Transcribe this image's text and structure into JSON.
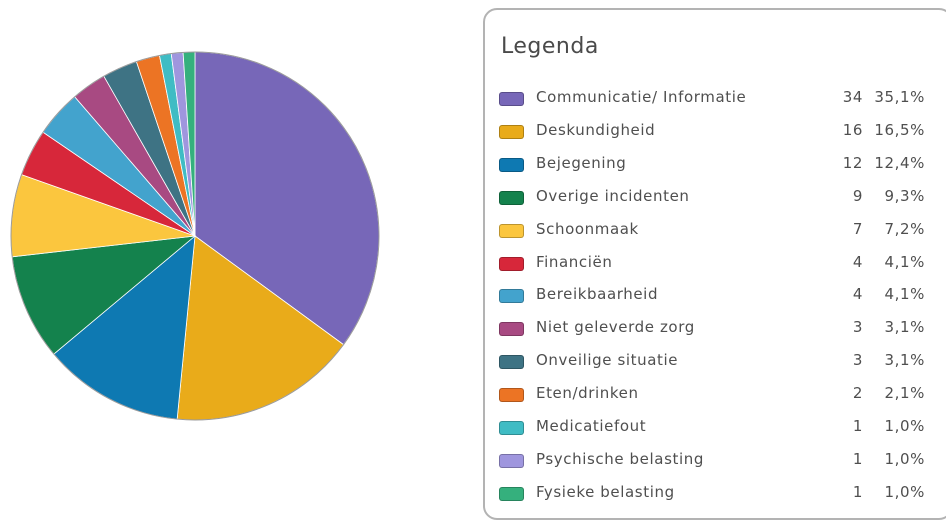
{
  "chart_data": {
    "type": "pie",
    "legend_title": "Legenda",
    "legend_position": "right",
    "slices": [
      {
        "label": "Communicatie/ Informatie",
        "count": "34",
        "percent": "35,1%",
        "value": 34,
        "color": "#7767b8"
      },
      {
        "label": "Deskundigheid",
        "count": "16",
        "percent": "16,5%",
        "value": 16,
        "color": "#e9ab1a"
      },
      {
        "label": "Bejegening",
        "count": "12",
        "percent": "12,4%",
        "value": 12,
        "color": "#0e79b2"
      },
      {
        "label": "Overige incidenten",
        "count": "9",
        "percent": "9,3%",
        "value": 9,
        "color": "#14824d"
      },
      {
        "label": "Schoonmaak",
        "count": "7",
        "percent": "7,2%",
        "value": 7,
        "color": "#fbc63e"
      },
      {
        "label": "Financiën",
        "count": "4",
        "percent": "4,1%",
        "value": 4,
        "color": "#d7273a"
      },
      {
        "label": "Bereikbaarheid",
        "count": "4",
        "percent": "4,1%",
        "value": 4,
        "color": "#43a3cd"
      },
      {
        "label": "Niet geleverde zorg",
        "count": "3",
        "percent": "3,1%",
        "value": 3,
        "color": "#a84a82"
      },
      {
        "label": "Onveilige situatie",
        "count": "3",
        "percent": "3,1%",
        "value": 3,
        "color": "#3e7384"
      },
      {
        "label": "Eten/drinken",
        "count": "2",
        "percent": "2,1%",
        "value": 2,
        "color": "#ec7424"
      },
      {
        "label": "Medicatiefout",
        "count": "1",
        "percent": "1,0%",
        "value": 1,
        "color": "#3fbcc4"
      },
      {
        "label": "Psychische belasting",
        "count": "1",
        "percent": "1,0%",
        "value": 1,
        "color": "#9f96de"
      },
      {
        "label": "Fysieke belasting",
        "count": "1",
        "percent": "1,0%",
        "value": 1,
        "color": "#35b07d"
      }
    ]
  }
}
